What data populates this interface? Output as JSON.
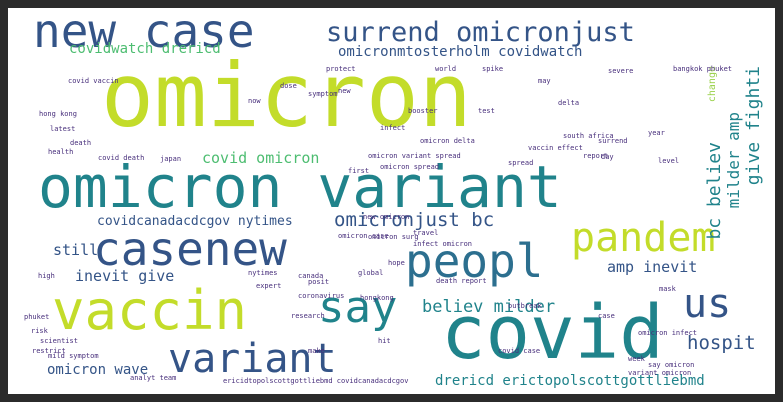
{
  "palette": {
    "lime": "#c3dc2a",
    "teal": "#20838b",
    "navy": "#345487",
    "green": "#4dbd71",
    "blue": "#2c6f8f",
    "purple": "#472e7b",
    "dark": "#3b1f5c",
    "pale": "#9ad14a"
  },
  "words": [
    {
      "t": "omicron",
      "c": "lime"
    },
    {
      "t": "omicron variant",
      "c": "teal"
    },
    {
      "t": "new case",
      "c": "navy"
    },
    {
      "t": "surrend omicronjust",
      "c": "navy"
    },
    {
      "t": "covidwatch drericd",
      "c": "green"
    },
    {
      "t": "omicronmtosterholm covidwatch",
      "c": "navy"
    },
    {
      "t": "casenew",
      "c": "navy"
    },
    {
      "t": "peopl",
      "c": "blue"
    },
    {
      "t": "pandem",
      "c": "lime"
    },
    {
      "t": "vaccin",
      "c": "lime"
    },
    {
      "t": "say",
      "c": "teal"
    },
    {
      "t": "covid",
      "c": "teal"
    },
    {
      "t": "us",
      "c": "navy"
    },
    {
      "t": "variant",
      "c": "navy"
    },
    {
      "t": "covid omicron",
      "c": "green"
    },
    {
      "t": "covidcanadacdcgov nytimes",
      "c": "navy"
    },
    {
      "t": "omicronjust bc",
      "c": "navy"
    },
    {
      "t": "still",
      "c": "navy"
    },
    {
      "t": "inevit give",
      "c": "navy"
    },
    {
      "t": "believ milder",
      "c": "teal"
    },
    {
      "t": "amp inevit",
      "c": "navy"
    },
    {
      "t": "omicron wave",
      "c": "navy"
    },
    {
      "t": "drericd erictopolscottgottliebmd",
      "c": "teal"
    },
    {
      "t": "hospit",
      "c": "navy"
    },
    {
      "t": "bc believ",
      "c": "teal"
    },
    {
      "t": "milder amp",
      "c": "teal"
    },
    {
      "t": "give fighti",
      "c": "teal"
    },
    {
      "t": "change",
      "c": "pale"
    },
    {
      "t": "death",
      "c": "purple"
    },
    {
      "t": "infect",
      "c": "purple"
    },
    {
      "t": "symptom",
      "c": "purple"
    },
    {
      "t": "delta",
      "c": "purple"
    },
    {
      "t": "hong kong",
      "c": "purple"
    },
    {
      "t": "latest",
      "c": "purple"
    },
    {
      "t": "report",
      "c": "purple"
    },
    {
      "t": "spread",
      "c": "purple"
    },
    {
      "t": "test",
      "c": "purple"
    },
    {
      "t": "world",
      "c": "purple"
    },
    {
      "t": "covid death",
      "c": "purple"
    },
    {
      "t": "japan",
      "c": "purple"
    },
    {
      "t": "mask",
      "c": "purple"
    },
    {
      "t": "health",
      "c": "purple"
    },
    {
      "t": "omicron spread",
      "c": "purple"
    },
    {
      "t": "omicron infect",
      "c": "purple"
    },
    {
      "t": "bangkok phuket",
      "c": "purple"
    },
    {
      "t": "south africa",
      "c": "purple"
    },
    {
      "t": "booster",
      "c": "purple"
    },
    {
      "t": "global",
      "c": "purple"
    },
    {
      "t": "coronavirus",
      "c": "purple"
    },
    {
      "t": "research",
      "c": "purple"
    },
    {
      "t": "hongkong",
      "c": "purple"
    },
    {
      "t": "new omicron",
      "c": "purple"
    },
    {
      "t": "omicron case",
      "c": "purple"
    },
    {
      "t": "death report",
      "c": "purple"
    },
    {
      "t": "travel",
      "c": "purple"
    },
    {
      "t": "scientist",
      "c": "purple"
    },
    {
      "t": "restrict",
      "c": "purple"
    },
    {
      "t": "phuket",
      "c": "purple"
    },
    {
      "t": "level",
      "c": "purple"
    },
    {
      "t": "case",
      "c": "purple"
    },
    {
      "t": "spike",
      "c": "purple"
    },
    {
      "t": "day",
      "c": "purple"
    },
    {
      "t": "analyt team",
      "c": "purple"
    },
    {
      "t": "week",
      "c": "purple"
    },
    {
      "t": "vaccin effect",
      "c": "purple"
    },
    {
      "t": "new",
      "c": "purple"
    },
    {
      "t": "covid case",
      "c": "purple"
    },
    {
      "t": "risk",
      "c": "purple"
    },
    {
      "t": "canada",
      "c": "purple"
    },
    {
      "t": "protect",
      "c": "purple"
    },
    {
      "t": "mild symptom",
      "c": "purple"
    },
    {
      "t": "say omicron",
      "c": "purple"
    },
    {
      "t": "covid vaccin",
      "c": "purple"
    },
    {
      "t": "hope",
      "c": "purple"
    },
    {
      "t": "variant omicron",
      "c": "purple"
    },
    {
      "t": "outbreak",
      "c": "purple"
    },
    {
      "t": "make",
      "c": "purple"
    },
    {
      "t": "first",
      "c": "purple"
    },
    {
      "t": "high",
      "c": "purple"
    },
    {
      "t": "hit",
      "c": "purple"
    },
    {
      "t": "dose",
      "c": "purple"
    },
    {
      "t": "omicron delta",
      "c": "purple"
    },
    {
      "t": "omicron surg",
      "c": "purple"
    },
    {
      "t": "infect omicron",
      "c": "purple"
    },
    {
      "t": "severe",
      "c": "purple"
    },
    {
      "t": "posit",
      "c": "purple"
    },
    {
      "t": "expert",
      "c": "purple"
    },
    {
      "t": "year",
      "c": "purple"
    },
    {
      "t": "may",
      "c": "purple"
    },
    {
      "t": "now",
      "c": "purple"
    },
    {
      "t": "ericidtopolscottgottliebmd covidcanadacdcgov",
      "c": "purple"
    },
    {
      "t": "omicron variant spread",
      "c": "purple"
    },
    {
      "t": "surrend",
      "c": "purple"
    },
    {
      "t": "nytimes",
      "c": "purple"
    }
  ]
}
